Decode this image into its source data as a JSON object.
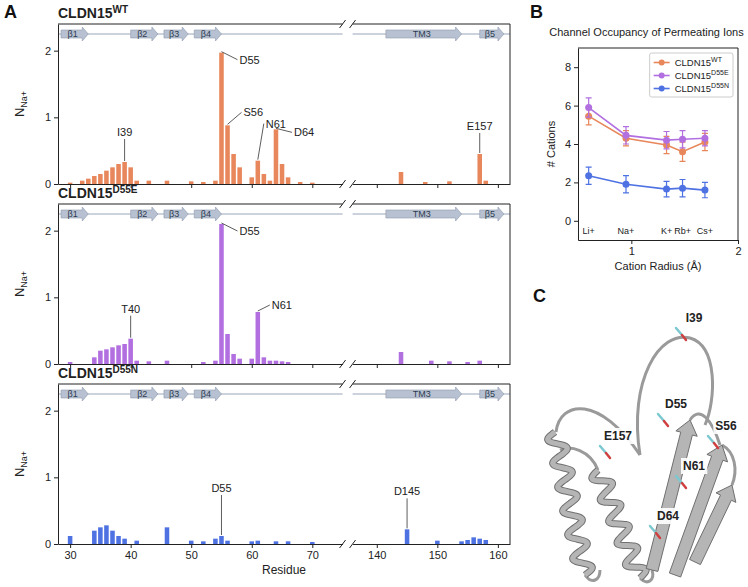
{
  "panel_letters": [
    "A",
    "B",
    "C"
  ],
  "chart_data": [
    {
      "type": "bar",
      "title": "CLDN15",
      "variant": "WT",
      "y_label": "N",
      "y_label_sub": "Na+",
      "color": "#e8875b",
      "xlim": [
        [
          28,
          75
        ],
        [
          136,
          162
        ]
      ],
      "xticks": [
        [
          30,
          40,
          50,
          60,
          70
        ],
        [
          140,
          150,
          160
        ]
      ],
      "ylim": [
        0,
        2.4
      ],
      "yticks": [
        0,
        1,
        2
      ],
      "tick_labels": "y",
      "x": [
        30,
        32,
        33,
        34,
        35,
        36,
        37,
        38,
        39,
        40,
        41,
        43,
        46,
        50,
        52,
        54,
        55,
        56,
        57,
        58,
        60,
        61,
        62,
        63,
        64,
        65,
        66,
        68,
        70,
        144,
        148,
        152,
        157,
        158
      ],
      "values": [
        0.02,
        0.05,
        0.08,
        0.12,
        0.15,
        0.2,
        0.25,
        0.3,
        0.33,
        0.25,
        0.05,
        0.05,
        0.05,
        0.04,
        0.03,
        0.05,
        1.97,
        0.88,
        0.45,
        0.25,
        0.1,
        0.35,
        0.15,
        0.05,
        0.82,
        0.3,
        0.1,
        0.03,
        0.02,
        0.18,
        0.03,
        0.04,
        0.45,
        0.05
      ],
      "secondary_structure": [
        {
          "label": "β1",
          "start": 28.5,
          "end": 33
        },
        {
          "label": "β2",
          "start": 40,
          "end": 44.5
        },
        {
          "label": "β3",
          "start": 45.5,
          "end": 49.5
        },
        {
          "label": "β4",
          "start": 50.5,
          "end": 55
        },
        {
          "label": "TM3",
          "start": 141.5,
          "end": 154
        },
        {
          "label": "β5",
          "start": 157,
          "end": 161
        }
      ],
      "annotations": [
        {
          "text": "I39",
          "x": 39
        },
        {
          "text": "D55",
          "x": 55
        },
        {
          "text": "S56",
          "x": 56
        },
        {
          "text": "N61",
          "x": 61
        },
        {
          "text": "D64",
          "x": 64
        },
        {
          "text": "E157",
          "x": 157
        }
      ]
    },
    {
      "type": "bar",
      "title": "CLDN15",
      "variant": "D55E",
      "y_label": "N",
      "y_label_sub": "Na+",
      "color": "#b26fe0",
      "xlim": [
        [
          28,
          75
        ],
        [
          136,
          162
        ]
      ],
      "xticks": [
        [
          30,
          40,
          50,
          60,
          70
        ],
        [
          140,
          150,
          160
        ]
      ],
      "ylim": [
        0,
        2.4
      ],
      "yticks": [
        0,
        1,
        2
      ],
      "tick_labels": "y",
      "x": [
        30,
        34,
        35,
        36,
        37,
        38,
        39,
        40,
        41,
        43,
        46,
        52,
        54,
        55,
        56,
        57,
        58,
        60,
        61,
        62,
        63,
        64,
        65,
        66,
        144,
        149,
        152,
        155,
        157
      ],
      "values": [
        0.03,
        0.1,
        0.2,
        0.22,
        0.25,
        0.28,
        0.3,
        0.38,
        0.05,
        0.04,
        0.05,
        0.03,
        0.05,
        2.1,
        0.45,
        0.15,
        0.08,
        0.08,
        0.78,
        0.1,
        0.05,
        0.05,
        0.04,
        0.03,
        0.18,
        0.05,
        0.04,
        0.03,
        0.05
      ],
      "secondary_structure": [
        {
          "label": "β1",
          "start": 28.5,
          "end": 33
        },
        {
          "label": "β2",
          "start": 40,
          "end": 44.5
        },
        {
          "label": "β3",
          "start": 45.5,
          "end": 49.5
        },
        {
          "label": "β4",
          "start": 50.5,
          "end": 55
        },
        {
          "label": "TM3",
          "start": 141.5,
          "end": 154
        },
        {
          "label": "β5",
          "start": 157,
          "end": 161
        }
      ],
      "annotations": [
        {
          "text": "T40",
          "x": 40
        },
        {
          "text": "D55",
          "x": 55
        },
        {
          "text": "N61",
          "x": 61
        }
      ]
    },
    {
      "type": "bar",
      "title": "CLDN15",
      "variant": "D55N",
      "y_label": "N",
      "y_label_sub": "Na+",
      "x_label": "Residue",
      "color": "#4f72e3",
      "xlim": [
        [
          28,
          75
        ],
        [
          136,
          162
        ]
      ],
      "xticks": [
        [
          30,
          40,
          50,
          60,
          70
        ],
        [
          140,
          150,
          160
        ]
      ],
      "ylim": [
        0,
        2.4
      ],
      "yticks": [
        0,
        1,
        2
      ],
      "x": [
        30,
        34,
        35,
        36,
        37,
        38,
        39,
        41,
        46,
        50,
        52,
        54,
        55,
        56,
        60,
        61,
        64,
        66,
        70,
        145,
        150,
        154,
        155,
        156,
        157,
        158
      ],
      "values": [
        0.12,
        0.2,
        0.25,
        0.28,
        0.2,
        0.12,
        0.08,
        0.05,
        0.25,
        0.05,
        0.04,
        0.08,
        0.12,
        0.05,
        0.04,
        0.05,
        0.04,
        0.04,
        0.03,
        0.22,
        0.05,
        0.04,
        0.06,
        0.1,
        0.08,
        0.06
      ],
      "secondary_structure": [
        {
          "label": "β1",
          "start": 28.5,
          "end": 33
        },
        {
          "label": "β2",
          "start": 40,
          "end": 44.5
        },
        {
          "label": "β3",
          "start": 45.5,
          "end": 49.5
        },
        {
          "label": "β4",
          "start": 50.5,
          "end": 55
        },
        {
          "label": "TM3",
          "start": 141.5,
          "end": 154
        },
        {
          "label": "β5",
          "start": 157,
          "end": 161
        }
      ],
      "annotations": [
        {
          "text": "D55",
          "x": 55
        },
        {
          "text": "D145",
          "x": 145
        }
      ]
    },
    {
      "type": "line",
      "title": "Channel Occupancy of Permeating Ions",
      "x_label": "Cation Radius (Å)",
      "y_label": "# Cations",
      "xlim": [
        0.5,
        2.0
      ],
      "xticks": [
        1,
        2
      ],
      "ylim": [
        -1,
        9
      ],
      "yticks": [
        0,
        2,
        4,
        6,
        8
      ],
      "marker": "circle",
      "line_style": "solid",
      "legend": "top-right",
      "x": [
        0.6,
        0.95,
        1.33,
        1.48,
        1.69
      ],
      "point_labels": [
        "Li+",
        "Na+",
        "K+",
        "Rb+",
        "Cs+"
      ],
      "series": [
        {
          "name": "CLDN15",
          "variant": "WT",
          "color": "#e8875b",
          "values": [
            5.45,
            4.3,
            3.95,
            3.6,
            4.1
          ],
          "errors": [
            0.45,
            0.4,
            0.45,
            0.5,
            0.45
          ]
        },
        {
          "name": "CLDN15",
          "variant": "D55E",
          "color": "#b26fe0",
          "values": [
            5.9,
            4.45,
            4.2,
            4.25,
            4.3
          ],
          "errors": [
            0.5,
            0.45,
            0.45,
            0.45,
            0.4
          ]
        },
        {
          "name": "CLDN15",
          "variant": "D55N",
          "color": "#4f72e3",
          "values": [
            2.35,
            1.9,
            1.65,
            1.7,
            1.6
          ],
          "errors": [
            0.45,
            0.45,
            0.4,
            0.45,
            0.4
          ]
        }
      ]
    }
  ],
  "structure_image": {
    "residue_labels": [
      "I39",
      "D55",
      "S56",
      "N61",
      "D64",
      "E157"
    ]
  }
}
